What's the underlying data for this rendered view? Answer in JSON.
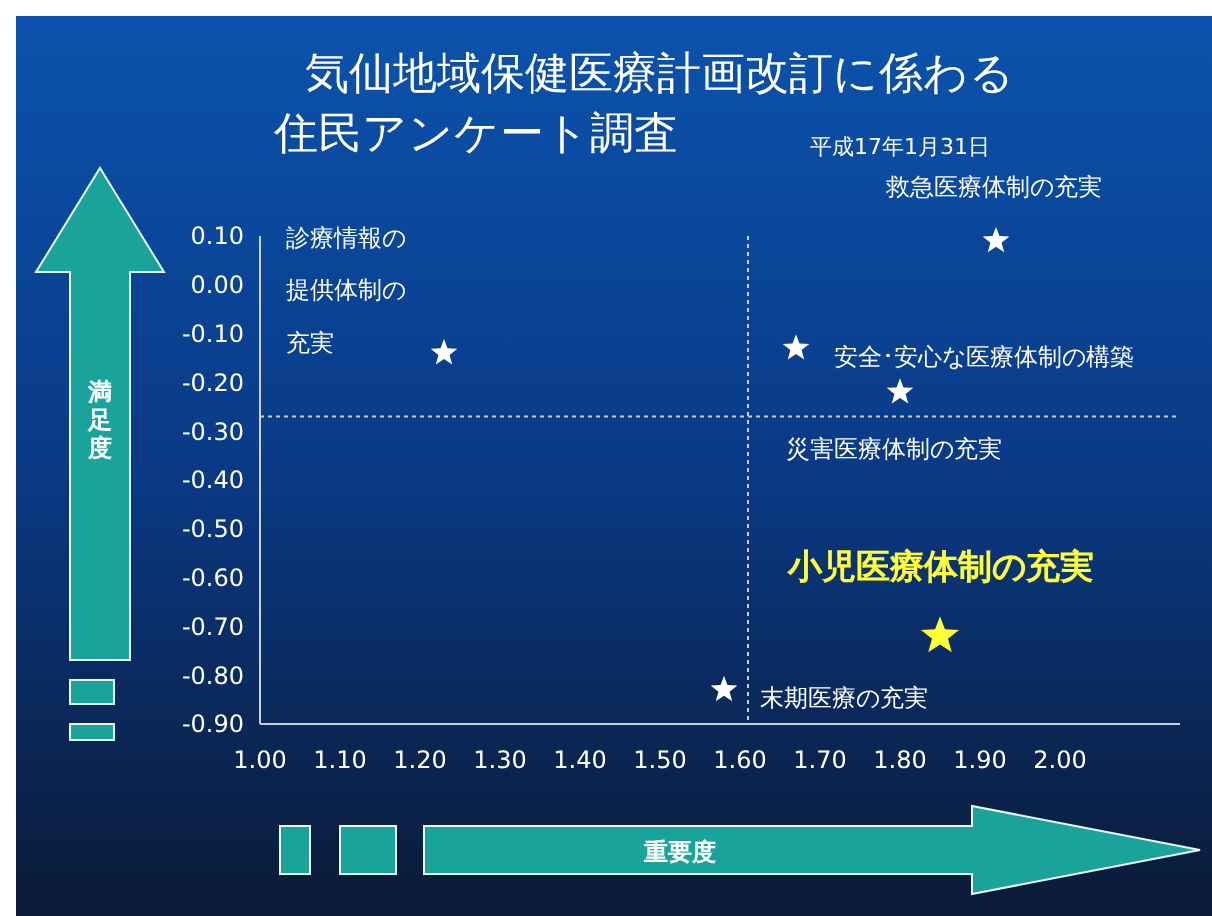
{
  "chart_data": {
    "type": "scatter",
    "title": "気仙地域保健医療計画改訂に係わる住民アンケート調査",
    "subtitle": "平成17年1月31日",
    "xlabel": "重要度",
    "ylabel": "満足度",
    "x": [
      1.23,
      1.92,
      1.67,
      1.8,
      1.85,
      1.58
    ],
    "series": [
      {
        "values": [
          -0.14,
          0.09,
          -0.13,
          -0.22,
          -0.72,
          -0.83
        ],
        "colors": [
          "#ffffff",
          "#ffffff",
          "#ffffff",
          "#ffffff",
          "#ffff33",
          "#ffffff"
        ],
        "sizes": [
          0.49,
          0.49,
          0.49,
          0.49,
          1,
          0.49
        ]
      }
    ],
    "marker": "star",
    "xlim": [
      1.0,
      2.15
    ],
    "xticks": [
      {
        "value": 1.0,
        "label": "1.00"
      },
      {
        "value": 1.1,
        "label": "1.10"
      },
      {
        "value": 1.2,
        "label": "1.20"
      },
      {
        "value": 1.3,
        "label": "1.30"
      },
      {
        "value": 1.4,
        "label": "1.40"
      },
      {
        "value": 1.5,
        "label": "1.50"
      },
      {
        "value": 1.6,
        "label": "1.60"
      },
      {
        "value": 1.7,
        "label": "1.70"
      },
      {
        "value": 1.8,
        "label": "1.80"
      },
      {
        "value": 1.9,
        "label": "1.90"
      },
      {
        "value": 2.0,
        "label": "2.00"
      }
    ],
    "ylim": [
      -0.9,
      0.1
    ],
    "yticks": [
      {
        "value": 0.1,
        "label": "0.10"
      },
      {
        "value": 0,
        "label": "0.00"
      },
      {
        "value": -0.1,
        "label": "-0.10"
      },
      {
        "value": -0.2,
        "label": "-0.20"
      },
      {
        "value": -0.3,
        "label": "-0.30"
      },
      {
        "value": -0.4,
        "label": "-0.40"
      },
      {
        "value": -0.5,
        "label": "-0.50"
      },
      {
        "value": -0.6,
        "label": "-0.60"
      },
      {
        "value": -0.7,
        "label": "-0.70"
      },
      {
        "value": -0.8,
        "label": "-0.80"
      },
      {
        "value": -0.9,
        "label": "-0.90"
      }
    ],
    "ref_lines": [
      {
        "axis": "x",
        "value": 1.61,
        "line_style": "dotted"
      },
      {
        "axis": "y",
        "value": -0.27,
        "line_style": "dotted"
      }
    ],
    "annotations": [
      {
        "text": "診療情報の提供体制の充実",
        "x": 1.23,
        "y": -0.14
      },
      {
        "text": "救急医療体制の充実",
        "x": 1.92,
        "y": 0.09
      },
      {
        "text": "安全･安心な医療体制の構築",
        "x": 1.67,
        "y": -0.13
      },
      {
        "text": "災害医療体制の充実",
        "x": 1.8,
        "y": -0.22
      },
      {
        "text": "小児医療体制の充実",
        "x": 1.85,
        "y": -0.72
      },
      {
        "text": "末期医療の充実",
        "x": 1.58,
        "y": -0.83
      }
    ]
  }
}
